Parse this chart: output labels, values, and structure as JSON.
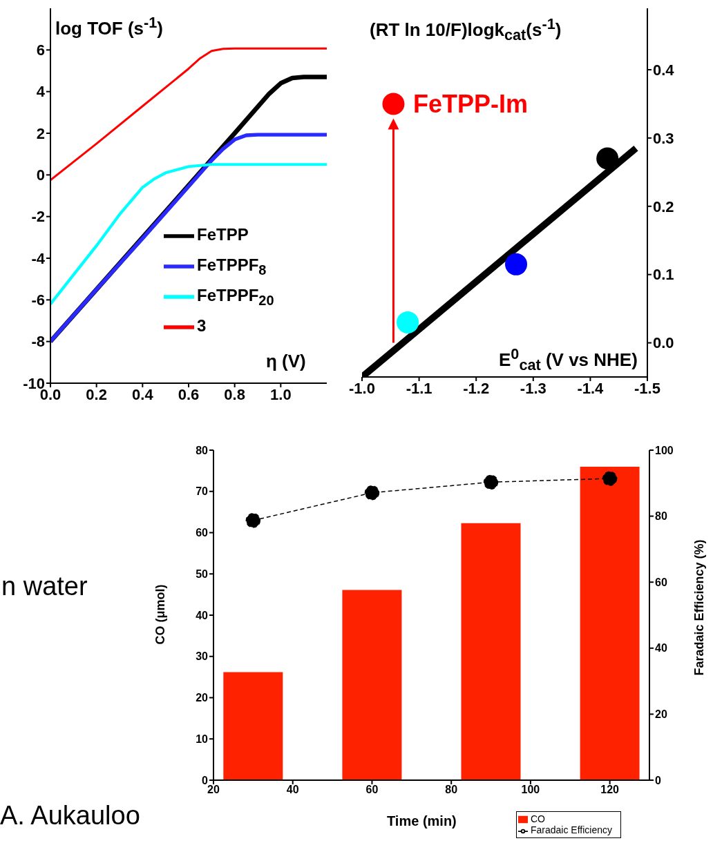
{
  "chart_data": [
    {
      "type": "line",
      "ylabel": "log TOF (s$^{-1}$)",
      "xlabel": "η (V)",
      "xlim": [
        0,
        1.2
      ],
      "xticks": [
        {
          "value": 0,
          "label": "0.0"
        },
        {
          "value": 0.2,
          "label": "0.2"
        },
        {
          "value": 0.4,
          "label": "0.4"
        },
        {
          "value": 0.6,
          "label": "0.6"
        },
        {
          "value": 0.8,
          "label": "0.8"
        },
        {
          "value": 1.0,
          "label": "1.0"
        }
      ],
      "ylim": [
        -10,
        8
      ],
      "yticks": [
        -10,
        -8,
        -6,
        -4,
        -2,
        0,
        2,
        4,
        6
      ],
      "legend": "right",
      "series": [
        {
          "name": "FeTPP",
          "color": "#000000",
          "x": [
            0,
            0.2,
            0.4,
            0.6,
            0.8,
            0.95,
            1.0,
            1.05,
            1.1,
            1.2
          ],
          "values": [
            -8,
            -5.5,
            -3,
            -0.5,
            2,
            3.9,
            4.4,
            4.65,
            4.7,
            4.7
          ]
        },
        {
          "name": "FeTPPF$_{8}$",
          "color": "#2a2aff",
          "x": [
            0,
            0.2,
            0.4,
            0.6,
            0.7,
            0.75,
            0.8,
            0.85,
            0.9,
            1.2
          ],
          "values": [
            -8,
            -5.5,
            -3.05,
            -0.55,
            0.7,
            1.25,
            1.7,
            1.9,
            1.93,
            1.93
          ]
        },
        {
          "name": "FeTPPF$_{20}$",
          "color": "#00ffff",
          "x": [
            0,
            0.1,
            0.2,
            0.3,
            0.4,
            0.45,
            0.5,
            0.6,
            0.7,
            1.2
          ],
          "values": [
            -6.2,
            -4.8,
            -3.4,
            -1.9,
            -0.6,
            -0.2,
            0.1,
            0.4,
            0.5,
            0.5
          ]
        },
        {
          "name": "3",
          "color": "#ff0000",
          "x": [
            0,
            0.2,
            0.4,
            0.6,
            0.65,
            0.7,
            0.75,
            0.8,
            1.2
          ],
          "values": [
            -0.25,
            1.5,
            3.3,
            5.1,
            5.6,
            5.95,
            6.05,
            6.07,
            6.07
          ]
        }
      ]
    },
    {
      "type": "scatter",
      "y2label": "(RT ln 10/F)logk$_{cat}$(s$^{-1}$)",
      "xlabel": "E$^{0}$$_{cat}$ (V vs NHE)",
      "xlim": [
        -1.0,
        -1.5
      ],
      "xticks": [
        {
          "value": -1.0,
          "label": "-1.0"
        },
        -1.1,
        -1.2,
        -1.3,
        -1.4,
        -1.5
      ],
      "y2lim": [
        -0.05,
        0.49
      ],
      "y2ticks": [
        {
          "value": 0,
          "label": "0.0"
        },
        0.1,
        0.2,
        0.3,
        0.4
      ],
      "marker": "circle",
      "series": [
        {
          "type": "line",
          "color": "#000000",
          "axis": "y2",
          "marker": "none",
          "x": [
            -1.0,
            -1.48
          ],
          "values": [
            -0.05,
            0.285
          ]
        },
        {
          "color": "#00ffff",
          "axis": "y2",
          "x": [
            -1.08
          ],
          "values": [
            0.03
          ]
        },
        {
          "color": "#0000ff",
          "axis": "y2",
          "x": [
            -1.27
          ],
          "values": [
            0.115
          ]
        },
        {
          "color": "#000000",
          "axis": "y2",
          "x": [
            -1.43
          ],
          "values": [
            0.27
          ]
        },
        {
          "name": "FeTPP-Im",
          "color": "#ff0000",
          "axis": "y2",
          "x": [
            -1.055
          ],
          "values": [
            0.35
          ]
        }
      ]
    },
    {
      "type": "bar",
      "xlabel": "Time (min)",
      "ylabel": "CO (μmol)",
      "y2label": "Faradaic Efficiency (%)",
      "x": [
        30,
        60,
        90,
        120
      ],
      "xlim": [
        20,
        130
      ],
      "xticks": [
        20,
        40,
        60,
        80,
        100,
        120
      ],
      "ylim": [
        0,
        80
      ],
      "yticks": [
        0,
        10,
        20,
        30,
        40,
        50,
        60,
        70,
        80
      ],
      "y2lim": [
        0,
        100
      ],
      "y2ticks": [
        0,
        20,
        40,
        60,
        80,
        100
      ],
      "legend": "bottom right",
      "annotations": [
        "n water",
        "A. Aukauloo"
      ],
      "series": [
        {
          "name": "CO",
          "color": "#ff2200",
          "values": [
            26.2,
            46.1,
            62.3,
            76
          ]
        },
        {
          "name": "Faradaic Efficiency",
          "type": "line",
          "axis": "y2",
          "color": "#000000",
          "marker": "circle",
          "line_style": "dashed",
          "values": [
            78.7,
            87.1,
            90.3,
            91.4
          ]
        }
      ]
    }
  ]
}
